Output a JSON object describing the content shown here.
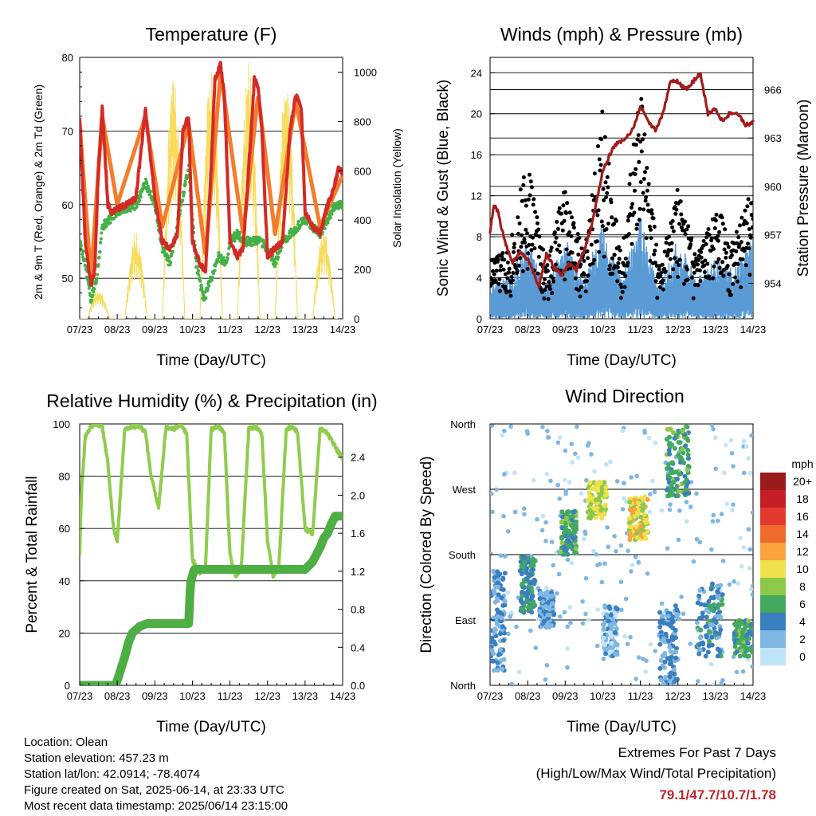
{
  "colors": {
    "temp_red": "#d42a26",
    "temp_orange": "#f47c2c",
    "dew_green": "#45b048",
    "solar_yellow": "#f7dc5d",
    "wind_blue": "#5b9bd5",
    "gust_black": "#000000",
    "pressure_maroon": "#a01c1c",
    "rh_lightgreen": "#8fcc4d",
    "precip_green": "#4dae44"
  },
  "x_tick_labels": [
    "07/23",
    "08/23",
    "09/23",
    "10/23",
    "11/23",
    "12/23",
    "13/23",
    "14/23"
  ],
  "xlabel": "Time (Day/UTC)",
  "chart_data": [
    {
      "type": "line",
      "title": "Temperature (F)",
      "xlabel": "Time (Day/UTC)",
      "ylabel": "2m & 9m T (Red, Orange) & 2m Td (Green)",
      "y2label": "Solar Insolation (Yellow)",
      "categories": [
        "07/23",
        "08/23",
        "09/23",
        "10/23",
        "11/23",
        "12/23",
        "13/23",
        "14/23"
      ],
      "ylim": [
        44.5,
        80
      ],
      "y_ticks": [
        50,
        60,
        70,
        80
      ],
      "y2lim": [
        0,
        1060
      ],
      "y2_ticks": [
        0,
        200,
        400,
        600,
        800,
        1000
      ],
      "series": [
        {
          "name": "2m T",
          "color": "#d42a26",
          "x": [
            0,
            0.15,
            0.3,
            0.4,
            0.5,
            0.6,
            0.75,
            0.85,
            1.0,
            1.25,
            1.5,
            1.75,
            2.0,
            2.2,
            2.4,
            2.6,
            2.75,
            2.9,
            3.0,
            3.2,
            3.35,
            3.5,
            3.6,
            3.75,
            3.85,
            4.0,
            4.2,
            4.35,
            4.5,
            4.65,
            4.75,
            4.85,
            5.0,
            5.2,
            5.4,
            5.6,
            5.75,
            5.9,
            6.0,
            6.2,
            6.4,
            6.6,
            6.75,
            6.9,
            7.0
          ],
          "values": [
            72,
            55,
            49,
            51,
            65,
            73,
            60,
            59,
            59.5,
            60,
            61,
            73,
            61,
            55,
            54,
            56,
            70,
            72,
            55,
            52,
            51,
            65,
            77,
            79,
            75,
            55,
            53,
            54,
            65,
            77,
            76,
            70,
            53,
            54,
            55,
            70,
            75,
            73,
            59,
            57,
            56,
            60,
            62,
            65,
            64
          ]
        },
        {
          "name": "9m T",
          "color": "#f47c2c",
          "x": [
            0,
            0.3,
            0.6,
            1.0,
            1.75,
            2.2,
            2.9,
            3.35,
            3.75,
            4.35,
            4.75,
            5.2,
            5.75,
            6.4,
            7.0
          ],
          "values": [
            71,
            50,
            72,
            60,
            72,
            57,
            71,
            53,
            78,
            56,
            75,
            56,
            74,
            57,
            64
          ]
        },
        {
          "name": "2m Td",
          "color": "#45b048",
          "x": [
            0,
            0.15,
            0.3,
            0.45,
            0.6,
            0.8,
            1.0,
            1.5,
            1.75,
            2.0,
            2.2,
            2.4,
            2.7,
            2.9,
            3.1,
            3.3,
            3.5,
            3.7,
            3.9,
            4.0,
            4.2,
            4.4,
            4.6,
            4.8,
            5.0,
            5.2,
            5.4,
            5.6,
            5.8,
            6.0,
            6.2,
            6.4,
            6.6,
            6.8,
            7.0
          ],
          "values": [
            55,
            52,
            47,
            50,
            57,
            58,
            59,
            60,
            63,
            60,
            54,
            52,
            60,
            65,
            52,
            47,
            50,
            53,
            52,
            55,
            56,
            55,
            55,
            55,
            54,
            52,
            55,
            56,
            57,
            58,
            57,
            56,
            58,
            60,
            60
          ]
        }
      ],
      "solar_daily_peaks": [
        {
          "x": 0.5,
          "value": 120
        },
        {
          "x": 1.5,
          "value": 350
        },
        {
          "x": 2.5,
          "value": 1000
        },
        {
          "x": 3.5,
          "value": 1060
        },
        {
          "x": 4.5,
          "value": 1040
        },
        {
          "x": 5.5,
          "value": 1000
        },
        {
          "x": 6.5,
          "value": 380
        }
      ]
    },
    {
      "type": "scatter",
      "title": "Winds (mph) & Pressure (mb)",
      "xlabel": "Time (Day/UTC)",
      "ylabel": "Sonic Wind & Gust (Blue, Black)",
      "y2label": "Station Pressure (Maroon)",
      "categories": [
        "07/23",
        "08/23",
        "09/23",
        "10/23",
        "11/23",
        "12/23",
        "13/23",
        "14/23"
      ],
      "ylim": [
        0,
        25.5
      ],
      "y_ticks": [
        0,
        4,
        8,
        12,
        16,
        20,
        24
      ],
      "y2lim": [
        951.8,
        968
      ],
      "y2_ticks": [
        954,
        957,
        960,
        963,
        966
      ],
      "wind_daily_envelope": {
        "x": [
          0.0,
          0.5,
          1.0,
          1.5,
          2.0,
          2.5,
          3.0,
          3.5,
          4.0,
          4.5,
          5.0,
          5.5,
          6.0,
          6.5,
          7.0
        ],
        "gust_high": [
          6,
          7,
          16,
          5,
          14,
          6,
          21,
          6,
          23,
          5,
          13,
          6,
          11,
          8,
          13
        ],
        "wind_high": [
          4,
          4,
          8,
          3,
          8,
          4,
          10,
          4,
          10,
          3,
          8,
          4,
          6,
          5,
          8
        ]
      },
      "series": [
        {
          "name": "Station Pressure",
          "color": "#a01c1c",
          "x": [
            0,
            0.1,
            0.2,
            0.4,
            0.6,
            0.8,
            1.0,
            1.3,
            1.5,
            1.7,
            1.9,
            2.1,
            2.3,
            2.5,
            2.7,
            3.0,
            3.3,
            3.6,
            3.8,
            4.0,
            4.2,
            4.4,
            4.6,
            4.8,
            5.0,
            5.2,
            5.4,
            5.6,
            5.8,
            6.0,
            6.2,
            6.4,
            6.6,
            6.8,
            7.0
          ],
          "values": [
            957.2,
            958.8,
            958.5,
            956.5,
            955.3,
            956.0,
            955.5,
            953.8,
            955.8,
            955.0,
            954.5,
            955.2,
            954.8,
            956.0,
            957.5,
            961.0,
            962.5,
            963.0,
            963.5,
            965.0,
            964.0,
            963.5,
            964.5,
            966.5,
            966.5,
            966.0,
            966.5,
            967.0,
            964.5,
            964.8,
            964.0,
            964.6,
            964.5,
            963.8,
            964.0
          ]
        }
      ]
    },
    {
      "type": "line",
      "title": "Relative Humidity (%) & Precipitation (in)",
      "xlabel": "Time (Day/UTC)",
      "ylabel": "Percent & Total Rainfall",
      "categories": [
        "07/23",
        "08/23",
        "09/23",
        "10/23",
        "11/23",
        "12/23",
        "13/23",
        "14/23"
      ],
      "ylim": [
        0,
        100
      ],
      "y_ticks": [
        0,
        20,
        40,
        60,
        80,
        100
      ],
      "y2lim": [
        0,
        2.75
      ],
      "y2_ticks": [
        "0.0",
        "0.4",
        "0.8",
        "1.2",
        "1.6",
        "2.0",
        "2.4"
      ],
      "series": [
        {
          "name": "Relative Humidity",
          "color": "#8fcc4d",
          "x": [
            0,
            0.05,
            0.15,
            0.3,
            0.45,
            0.6,
            0.75,
            0.9,
            1.0,
            1.2,
            1.4,
            1.6,
            1.75,
            1.9,
            2.1,
            2.3,
            2.5,
            2.7,
            2.85,
            3.0,
            3.2,
            3.35,
            3.5,
            3.7,
            3.85,
            4.0,
            4.15,
            4.3,
            4.5,
            4.7,
            4.85,
            5.0,
            5.15,
            5.3,
            5.5,
            5.65,
            5.8,
            6.0,
            6.2,
            6.4,
            6.55,
            6.7,
            6.85,
            7.0
          ],
          "values": [
            50,
            75,
            95,
            99,
            100,
            99,
            85,
            60,
            55,
            98,
            99,
            99,
            97,
            80,
            68,
            99,
            98,
            100,
            96,
            48,
            43,
            45,
            98,
            99,
            97,
            50,
            42,
            44,
            98,
            99,
            96,
            55,
            42,
            45,
            98,
            99,
            97,
            60,
            58,
            98,
            97,
            94,
            90,
            87
          ]
        },
        {
          "name": "Total Rainfall",
          "color": "#4dae44",
          "x": [
            0,
            0.5,
            0.95,
            1.0,
            1.2,
            1.3,
            1.4,
            1.6,
            1.8,
            1.9,
            2.0,
            2.2,
            2.5,
            2.9,
            2.95,
            3.0,
            3.05,
            3.3,
            4.0,
            5.0,
            5.8,
            6.0,
            6.2,
            6.4,
            6.5,
            6.6,
            6.7,
            6.8,
            6.9,
            7.0
          ],
          "values": [
            0,
            0,
            0,
            0.05,
            0.3,
            0.45,
            0.55,
            0.62,
            0.65,
            0.65,
            0.65,
            0.65,
            0.65,
            0.65,
            1.08,
            1.15,
            1.22,
            1.22,
            1.22,
            1.22,
            1.22,
            1.22,
            1.3,
            1.45,
            1.55,
            1.6,
            1.7,
            1.78,
            1.78,
            1.78
          ]
        }
      ]
    },
    {
      "type": "scatter",
      "title": "Wind Direction",
      "xlabel": "Time (Day/UTC)",
      "ylabel": "Direction (Colored By Speed)",
      "categories": [
        "07/23",
        "08/23",
        "09/23",
        "10/23",
        "11/23",
        "12/23",
        "13/23",
        "14/23"
      ],
      "y_tick_labels": [
        "North",
        "East",
        "South",
        "West",
        "North"
      ],
      "ylim": [
        0,
        360
      ],
      "clusters": [
        {
          "x": [
            0.0,
            0.4
          ],
          "dir": [
            20,
            160
          ],
          "speed": 3
        },
        {
          "x": [
            0.8,
            1.2
          ],
          "dir": [
            100,
            180
          ],
          "speed": 5
        },
        {
          "x": [
            1.3,
            1.7
          ],
          "dir": [
            80,
            130
          ],
          "speed": 3
        },
        {
          "x": [
            1.9,
            2.3
          ],
          "dir": [
            180,
            240
          ],
          "speed": 6
        },
        {
          "x": [
            2.6,
            3.1
          ],
          "dir": [
            230,
            280
          ],
          "speed": 9
        },
        {
          "x": [
            3.0,
            3.4
          ],
          "dir": [
            40,
            110
          ],
          "speed": 2
        },
        {
          "x": [
            3.7,
            4.2
          ],
          "dir": [
            200,
            260
          ],
          "speed": 10
        },
        {
          "x": [
            4.7,
            5.3
          ],
          "dir": [
            260,
            360
          ],
          "speed": 6
        },
        {
          "x": [
            4.5,
            5.0
          ],
          "dir": [
            0,
            110
          ],
          "speed": 3
        },
        {
          "x": [
            5.5,
            6.2
          ],
          "dir": [
            40,
            140
          ],
          "speed": 4
        },
        {
          "x": [
            6.5,
            7.0
          ],
          "dir": [
            40,
            90
          ],
          "speed": 6
        }
      ],
      "legend_title": "mph",
      "legend_labels": [
        "20+",
        "18",
        "16",
        "14",
        "12",
        "10",
        "8",
        "6",
        "4",
        "2",
        "0"
      ],
      "legend_colors": [
        "#9b1b1d",
        "#c51e24",
        "#e23a2f",
        "#f06a2c",
        "#f9a23e",
        "#f0e04a",
        "#8dc84a",
        "#44a85f",
        "#3a7fbf",
        "#7fb6e2",
        "#bfe4f6"
      ]
    }
  ],
  "info": {
    "location": "Location: Olean",
    "elevation": "Station elevation: 457.23 m",
    "latlon": "Station lat/lon: 42.0914; -78.4074",
    "created": "Figure created on Sat, 2025-06-14, at 23:33 UTC",
    "recent": "Most recent data timestamp: 2025/06/14 23:15:00"
  },
  "extremes": {
    "line1": "Extremes For Past 7 Days",
    "line2": "(High/Low/Max Wind/Total Precipitation)",
    "values": "79.1/47.7/10.7/1.78"
  }
}
